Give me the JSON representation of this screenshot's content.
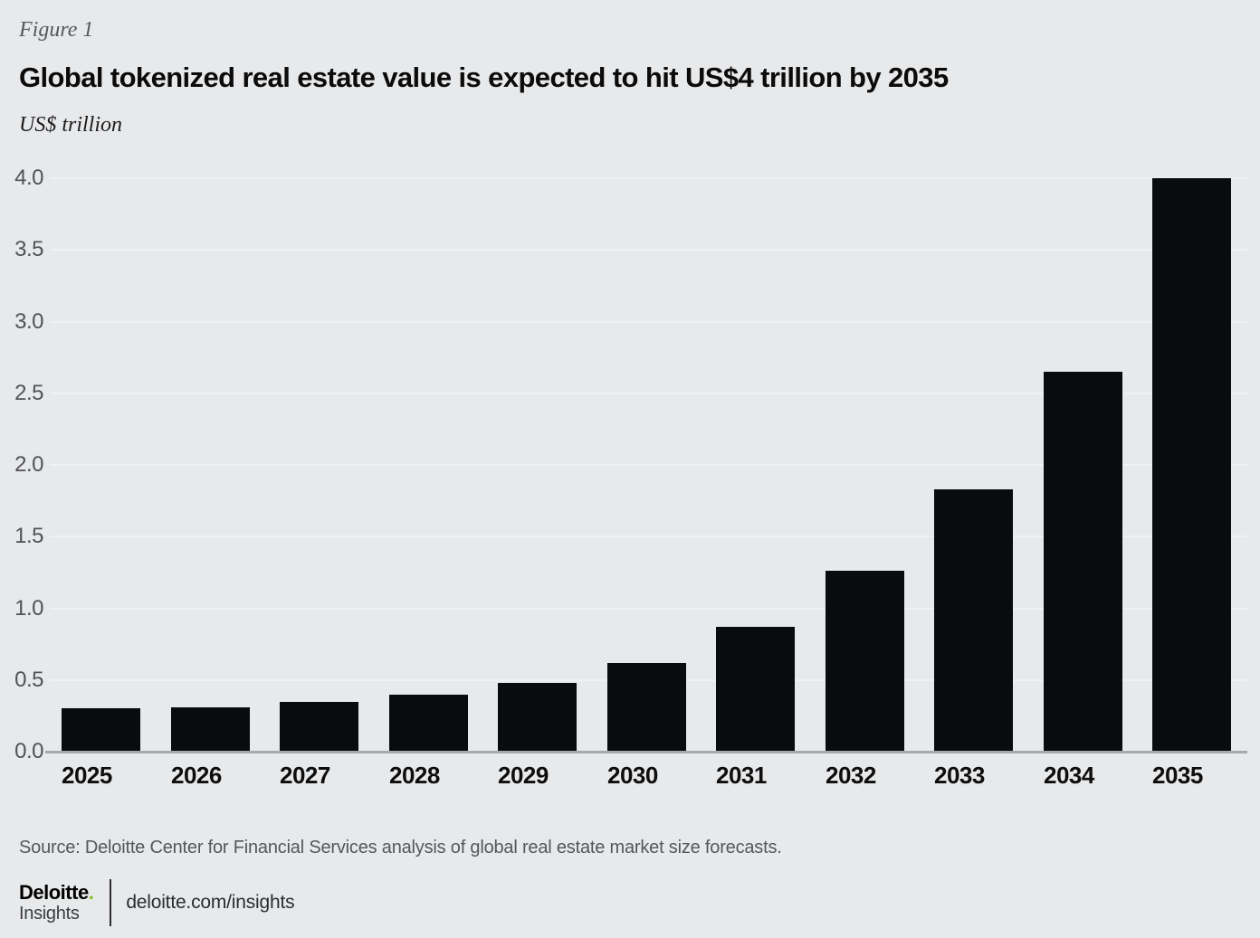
{
  "figure_label": "Figure 1",
  "source": "Source: Deloitte Center for Financial Services analysis of global real estate market size forecasts.",
  "footer": {
    "brand": "Deloitte",
    "brand_dot": ".",
    "brand_sub": "Insights",
    "url": "deloitte.com/insights"
  },
  "colors": {
    "background": "#e8e9ea",
    "bar": "#0a0b0d",
    "gridline": "#f0f1f2",
    "axis_line": "#a7a9ab",
    "tick_text": "#515254",
    "brand_green": "#86bc25"
  },
  "chart_data": {
    "type": "bar",
    "title": "Global tokenized real estate value is expected to hit US$4 trillion by 2035",
    "ylabel": "US$ trillion",
    "xlabel": "",
    "categories": [
      "2025",
      "2026",
      "2027",
      "2028",
      "2029",
      "2030",
      "2031",
      "2032",
      "2033",
      "2034",
      "2035"
    ],
    "values": [
      0.3,
      0.31,
      0.35,
      0.4,
      0.48,
      0.62,
      0.87,
      1.26,
      1.83,
      2.65,
      4.0
    ],
    "ylim": [
      0.0,
      4.0
    ],
    "yticks": [
      0.0,
      0.5,
      1.0,
      1.5,
      2.0,
      2.5,
      3.0,
      3.5,
      4.0
    ],
    "grid": true,
    "legend": "none",
    "bar_color": "#0a0b0d"
  }
}
